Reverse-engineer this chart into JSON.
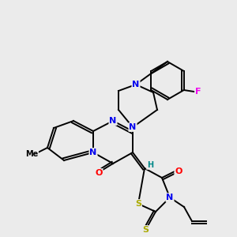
{
  "background_color": "#ebebeb",
  "atom_colors": {
    "N": "#0000ee",
    "O": "#ff0000",
    "S": "#aaaa00",
    "F": "#ee00ee",
    "C": "#000000",
    "H": "#008888"
  },
  "bond_color": "#000000",
  "figsize": [
    3.0,
    3.0
  ],
  "dpi": 100
}
